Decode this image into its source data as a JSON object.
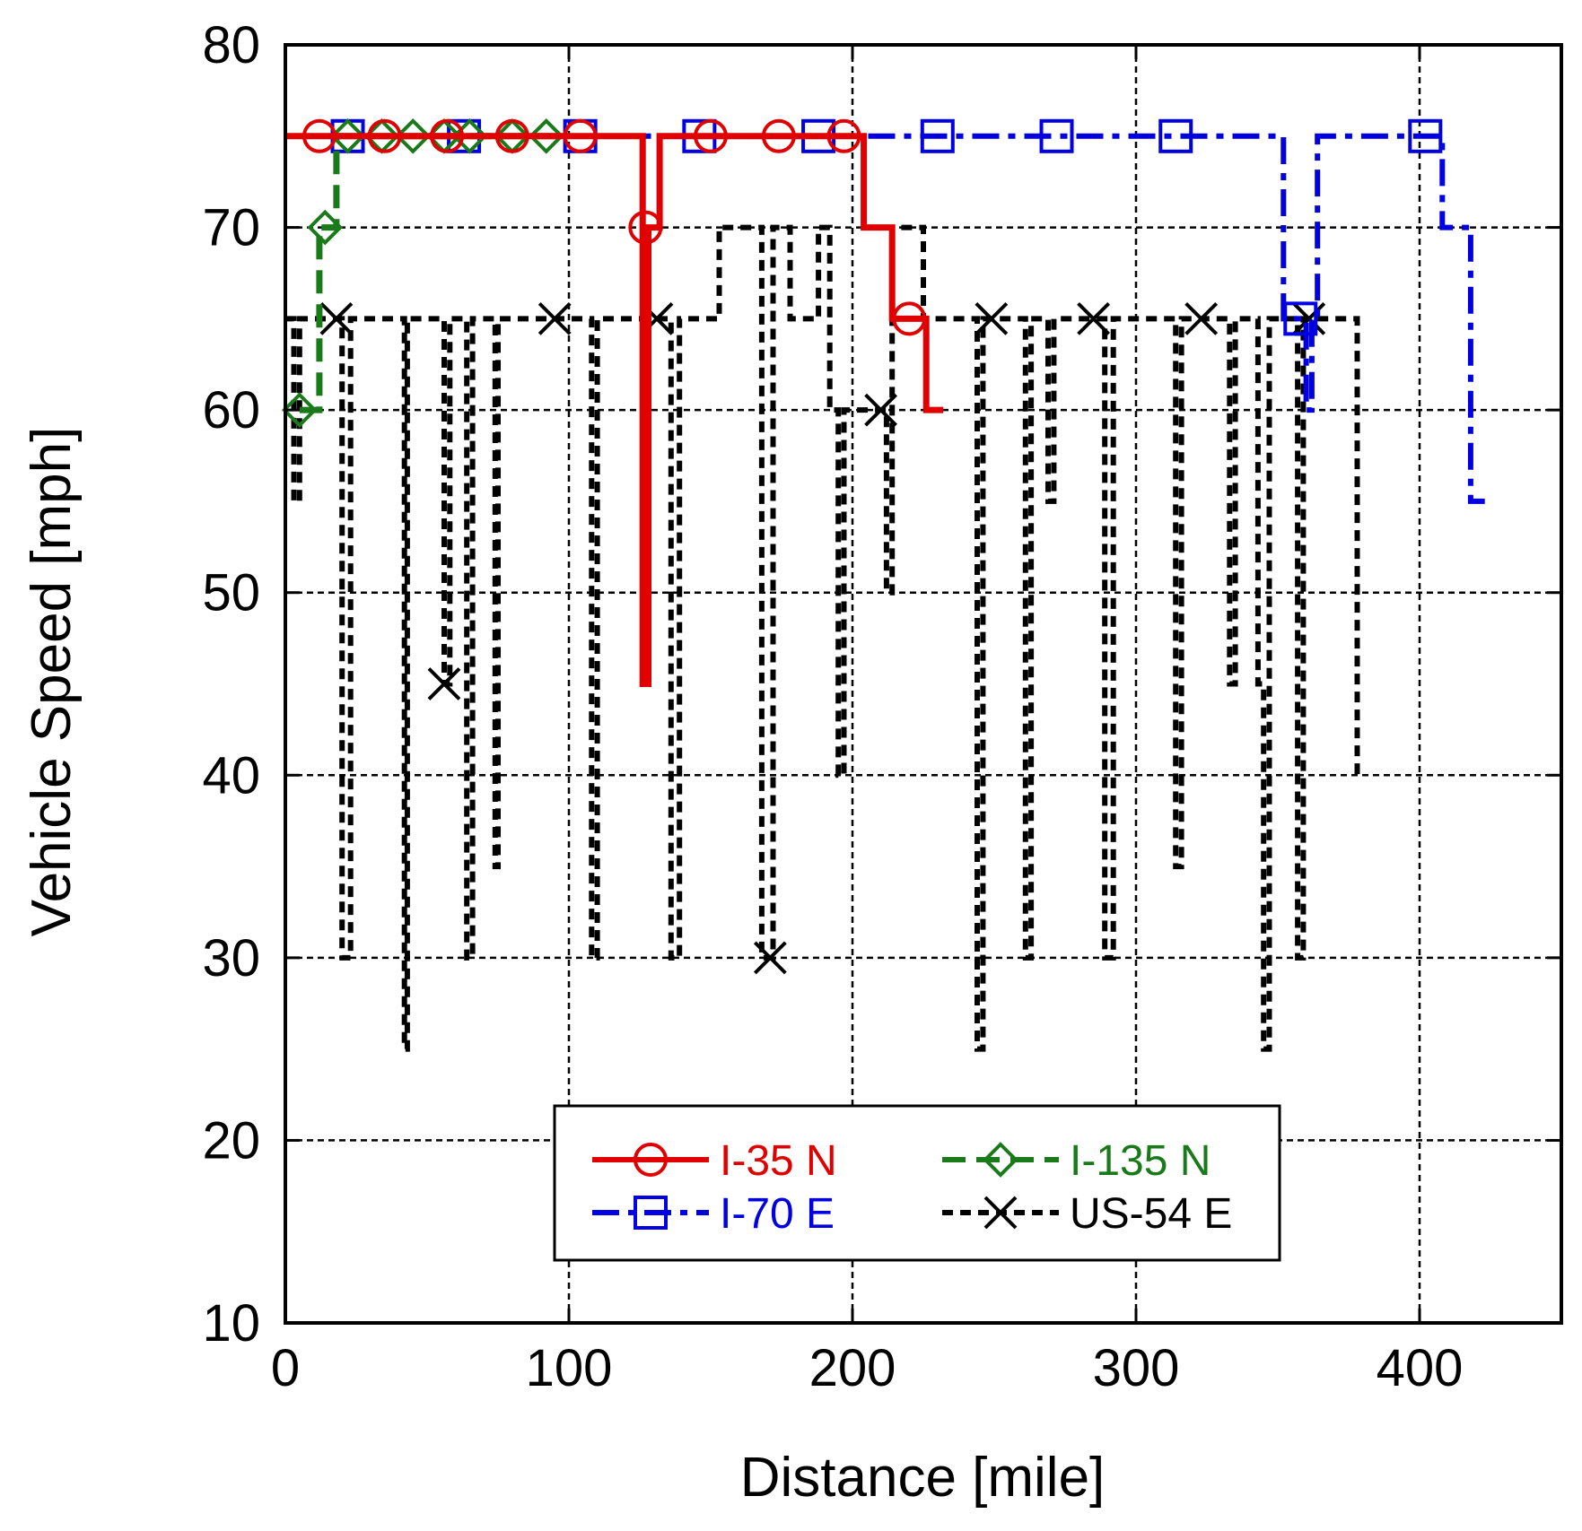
{
  "chart_data": {
    "type": "line",
    "xlabel": "Distance [mile]",
    "ylabel": "Vehicle Speed [mph]",
    "xlim": [
      0,
      450
    ],
    "ylim": [
      10,
      80
    ],
    "xticks": [
      0,
      100,
      200,
      300,
      400
    ],
    "yticks": [
      10,
      20,
      30,
      40,
      50,
      60,
      70,
      80
    ],
    "grid": true,
    "legend_position": "lower-center",
    "series": [
      {
        "name": "I-35 N",
        "color": "#e00000",
        "dash": "solid",
        "marker": "circle",
        "points": [
          [
            0,
            75
          ],
          [
            126,
            75
          ],
          [
            126,
            45
          ],
          [
            128,
            45
          ],
          [
            128,
            70
          ],
          [
            132,
            70
          ],
          [
            132,
            75
          ],
          [
            204,
            75
          ],
          [
            204,
            70
          ],
          [
            214,
            70
          ],
          [
            214,
            65
          ],
          [
            226,
            65
          ],
          [
            226,
            60
          ],
          [
            232,
            60
          ]
        ],
        "markers": [
          [
            12,
            75
          ],
          [
            35,
            75
          ],
          [
            57,
            75
          ],
          [
            80,
            75
          ],
          [
            104,
            75
          ],
          [
            127,
            70
          ],
          [
            150,
            75
          ],
          [
            174,
            75
          ],
          [
            197,
            75
          ],
          [
            220,
            65
          ]
        ]
      },
      {
        "name": "I-135 N",
        "color": "#1a7a1a",
        "dash": "dash",
        "marker": "diamond",
        "points": [
          [
            5,
            60
          ],
          [
            12,
            60
          ],
          [
            12,
            70
          ],
          [
            18,
            70
          ],
          [
            18,
            75
          ],
          [
            95,
            75
          ]
        ],
        "markers": [
          [
            5,
            60
          ],
          [
            14,
            70
          ],
          [
            22,
            75
          ],
          [
            34,
            75
          ],
          [
            45,
            75
          ],
          [
            56,
            75
          ],
          [
            65,
            75
          ],
          [
            80,
            75
          ],
          [
            92,
            75
          ]
        ]
      },
      {
        "name": "I-70 E",
        "color": "#0000e0",
        "dash": "dashdot",
        "marker": "square",
        "points": [
          [
            22,
            75
          ],
          [
            352,
            75
          ],
          [
            352,
            65
          ],
          [
            360,
            65
          ],
          [
            360,
            60
          ],
          [
            362,
            60
          ],
          [
            362,
            65
          ],
          [
            364,
            65
          ],
          [
            364,
            75
          ],
          [
            408,
            75
          ],
          [
            408,
            70
          ],
          [
            418,
            70
          ],
          [
            418,
            55
          ],
          [
            423,
            55
          ]
        ],
        "markers": [
          [
            22,
            75
          ],
          [
            63,
            75
          ],
          [
            104,
            75
          ],
          [
            146,
            75
          ],
          [
            188,
            75
          ],
          [
            230,
            75
          ],
          [
            272,
            75
          ],
          [
            314,
            75
          ],
          [
            358,
            65
          ],
          [
            402,
            75
          ]
        ]
      },
      {
        "name": "US-54 E",
        "color": "#000000",
        "dash": "dotted",
        "marker": "x",
        "points": [
          [
            0,
            65
          ],
          [
            3,
            65
          ],
          [
            3,
            55
          ],
          [
            5,
            55
          ],
          [
            5,
            65
          ],
          [
            20,
            65
          ],
          [
            20,
            30
          ],
          [
            23,
            30
          ],
          [
            23,
            65
          ],
          [
            42,
            65
          ],
          [
            42,
            25
          ],
          [
            43,
            25
          ],
          [
            43,
            65
          ],
          [
            56,
            65
          ],
          [
            56,
            45
          ],
          [
            58,
            45
          ],
          [
            58,
            65
          ],
          [
            64,
            65
          ],
          [
            64,
            30
          ],
          [
            66,
            30
          ],
          [
            66,
            65
          ],
          [
            74,
            65
          ],
          [
            74,
            35
          ],
          [
            75,
            35
          ],
          [
            75,
            65
          ],
          [
            108,
            65
          ],
          [
            108,
            30
          ],
          [
            110,
            30
          ],
          [
            110,
            65
          ],
          [
            136,
            65
          ],
          [
            136,
            30
          ],
          [
            139,
            30
          ],
          [
            139,
            65
          ],
          [
            153,
            65
          ],
          [
            153,
            70
          ],
          [
            168,
            70
          ],
          [
            168,
            30
          ],
          [
            172,
            30
          ],
          [
            172,
            70
          ],
          [
            178,
            70
          ],
          [
            178,
            65
          ],
          [
            188,
            65
          ],
          [
            188,
            70
          ],
          [
            192,
            70
          ],
          [
            192,
            60
          ],
          [
            195,
            60
          ],
          [
            195,
            40
          ],
          [
            197,
            40
          ],
          [
            197,
            60
          ],
          [
            212,
            60
          ],
          [
            212,
            50
          ],
          [
            214,
            50
          ],
          [
            214,
            70
          ],
          [
            225,
            70
          ],
          [
            225,
            65
          ],
          [
            244,
            65
          ],
          [
            244,
            25
          ],
          [
            246,
            25
          ],
          [
            246,
            65
          ],
          [
            261,
            65
          ],
          [
            261,
            30
          ],
          [
            263,
            30
          ],
          [
            263,
            65
          ],
          [
            269,
            65
          ],
          [
            269,
            55
          ],
          [
            271,
            55
          ],
          [
            271,
            65
          ],
          [
            289,
            65
          ],
          [
            289,
            30
          ],
          [
            292,
            30
          ],
          [
            292,
            65
          ],
          [
            314,
            65
          ],
          [
            314,
            35
          ],
          [
            316,
            35
          ],
          [
            316,
            65
          ],
          [
            333,
            65
          ],
          [
            333,
            45
          ],
          [
            335,
            45
          ],
          [
            335,
            65
          ],
          [
            343,
            65
          ],
          [
            343,
            45
          ],
          [
            345,
            45
          ],
          [
            345,
            25
          ],
          [
            347,
            25
          ],
          [
            347,
            65
          ],
          [
            357,
            65
          ],
          [
            357,
            30
          ],
          [
            359,
            30
          ],
          [
            359,
            65
          ],
          [
            378,
            65
          ],
          [
            378,
            40
          ],
          [
            380,
            40
          ]
        ],
        "markers": [
          [
            18,
            65
          ],
          [
            56,
            45
          ],
          [
            95,
            65
          ],
          [
            131,
            65
          ],
          [
            171,
            30
          ],
          [
            210,
            60
          ],
          [
            249,
            65
          ],
          [
            285,
            65
          ],
          [
            323,
            65
          ],
          [
            361,
            65
          ]
        ]
      }
    ]
  }
}
